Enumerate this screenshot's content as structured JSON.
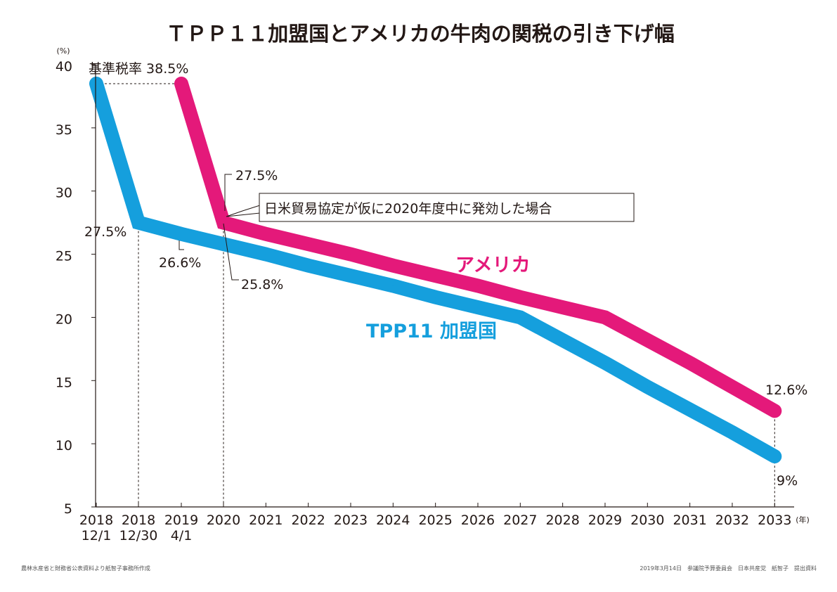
{
  "chart_data": {
    "type": "line",
    "title": "ＴＰＰ１１加盟国とアメリカの牛肉の関税の引き下げ幅",
    "ylabel": "(%)",
    "xlabel": "(年)",
    "ylim": [
      5,
      40
    ],
    "yticks": [
      5,
      10,
      15,
      20,
      25,
      30,
      35,
      40
    ],
    "categories": [
      {
        "line1": "2018",
        "line2": "12/1"
      },
      {
        "line1": "2018",
        "line2": "12/30"
      },
      {
        "line1": "2019",
        "line2": "4/1"
      },
      {
        "line1": "2020",
        "line2": ""
      },
      {
        "line1": "2021",
        "line2": ""
      },
      {
        "line1": "2022",
        "line2": ""
      },
      {
        "line1": "2023",
        "line2": ""
      },
      {
        "line1": "2024",
        "line2": ""
      },
      {
        "line1": "2025",
        "line2": ""
      },
      {
        "line1": "2026",
        "line2": ""
      },
      {
        "line1": "2027",
        "line2": ""
      },
      {
        "line1": "2028",
        "line2": ""
      },
      {
        "line1": "2029",
        "line2": ""
      },
      {
        "line1": "2030",
        "line2": ""
      },
      {
        "line1": "2031",
        "line2": ""
      },
      {
        "line1": "2032",
        "line2": ""
      },
      {
        "line1": "2033",
        "line2": ""
      }
    ],
    "series": [
      {
        "name": "TPP11 加盟国",
        "color": "#159FDD",
        "points": [
          {
            "x": 0,
            "y": 38.5
          },
          {
            "x": 1,
            "y": 27.5
          },
          {
            "x": 2,
            "y": 26.6
          },
          {
            "x": 3,
            "y": 25.8
          },
          {
            "x": 4,
            "y": 25.0
          },
          {
            "x": 5,
            "y": 24.1
          },
          {
            "x": 6,
            "y": 23.3
          },
          {
            "x": 7,
            "y": 22.5
          },
          {
            "x": 8,
            "y": 21.6
          },
          {
            "x": 9,
            "y": 20.8
          },
          {
            "x": 10,
            "y": 20.0
          },
          {
            "x": 11,
            "y": 18.2
          },
          {
            "x": 12,
            "y": 16.4
          },
          {
            "x": 13,
            "y": 14.5
          },
          {
            "x": 14,
            "y": 12.7
          },
          {
            "x": 15,
            "y": 10.9
          },
          {
            "x": 16,
            "y": 9.0
          }
        ]
      },
      {
        "name": "アメリカ",
        "color": "#E4197A",
        "points": [
          {
            "x": 2,
            "y": 38.5
          },
          {
            "x": 3,
            "y": 27.5
          },
          {
            "x": 4,
            "y": 26.6
          },
          {
            "x": 5,
            "y": 25.8
          },
          {
            "x": 6,
            "y": 25.0
          },
          {
            "x": 7,
            "y": 24.1
          },
          {
            "x": 8,
            "y": 23.3
          },
          {
            "x": 9,
            "y": 22.5
          },
          {
            "x": 10,
            "y": 21.6
          },
          {
            "x": 11,
            "y": 20.8
          },
          {
            "x": 12,
            "y": 20.0
          },
          {
            "x": 13,
            "y": 18.2
          },
          {
            "x": 14,
            "y": 16.4
          },
          {
            "x": 15,
            "y": 14.5
          },
          {
            "x": 16,
            "y": 12.6
          }
        ]
      }
    ],
    "annotations": {
      "base_rate": "基準税率 38.5%",
      "tpp_start": "27.5%",
      "tpp_2019": "26.6%",
      "tpp_2020": "25.8%",
      "us_start": "27.5%",
      "us_end": "12.6%",
      "tpp_end": "9%",
      "callout": "日米貿易協定が仮に2020年度中に発効した場合"
    },
    "legend": {
      "us": "アメリカ",
      "tpp": "TPP11 加盟国"
    },
    "grid": false
  },
  "footer": {
    "source": "農林水産省と財務省公表資料より紙智子事務所作成",
    "credit": "2019年3月14日　参議院予算委員会　日本共産党　紙智子　提出資料"
  }
}
